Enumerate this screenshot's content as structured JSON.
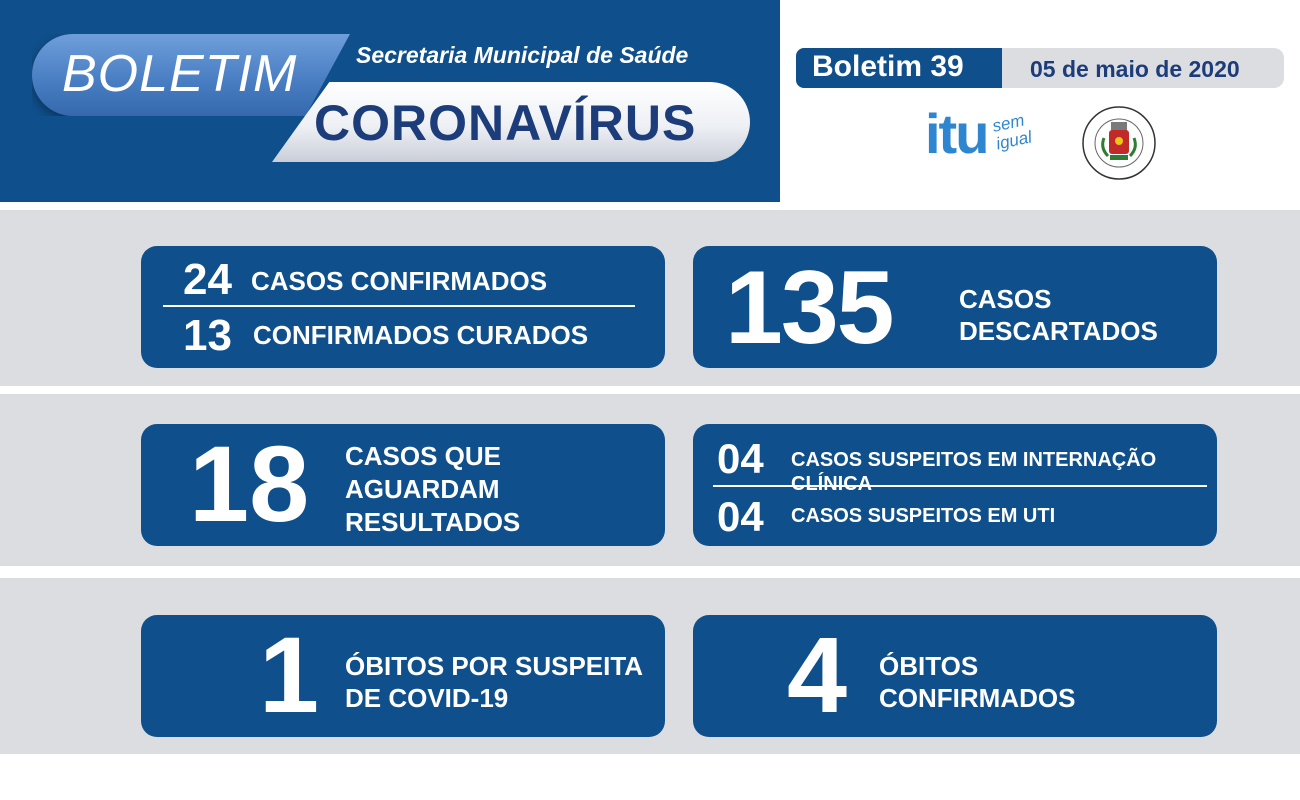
{
  "header": {
    "boletim_label": "BOLETIM",
    "secretaria": "Secretaria Municipal de Saúde",
    "coronavirus": "CORONAVÍRUS",
    "boletim_number": "Boletim 39",
    "date": "05 de maio de 2020",
    "logo_itu": "itu",
    "logo_itu_tagline": "sem igual",
    "logo_seal_text": "PREFEITURA DA ESTÂNCIA TURÍSTICA DE ITU"
  },
  "stats": {
    "casos_confirmados": {
      "value": "24",
      "label": "CASOS CONFIRMADOS"
    },
    "confirmados_curados": {
      "value": "13",
      "label": "CONFIRMADOS CURADOS"
    },
    "casos_descartados": {
      "value": "135",
      "label_line1": "CASOS",
      "label_line2": "DESCARTADOS"
    },
    "aguardam_resultados": {
      "value": "18",
      "label_line1": "CASOS QUE",
      "label_line2": "AGUARDAM",
      "label_line3": "RESULTADOS"
    },
    "internacao_clinica": {
      "value": "04",
      "label": "CASOS SUSPEITOS EM INTERNAÇÃO CLÍNICA"
    },
    "suspeitos_uti": {
      "value": "04",
      "label": "CASOS SUSPEITOS EM UTI"
    },
    "obitos_suspeita": {
      "value": "1",
      "label_line1": "ÓBITOS POR SUSPEITA",
      "label_line2": "DE COVID-19"
    },
    "obitos_confirmados": {
      "value": "4",
      "label_line1": "ÓBITOS",
      "label_line2": "CONFIRMADOS"
    }
  },
  "colors": {
    "primary_blue": "#0f4f8b",
    "band_gray": "#dcdde0",
    "title_navy": "#1c3c7a",
    "itu_blue": "#2f86d0"
  }
}
